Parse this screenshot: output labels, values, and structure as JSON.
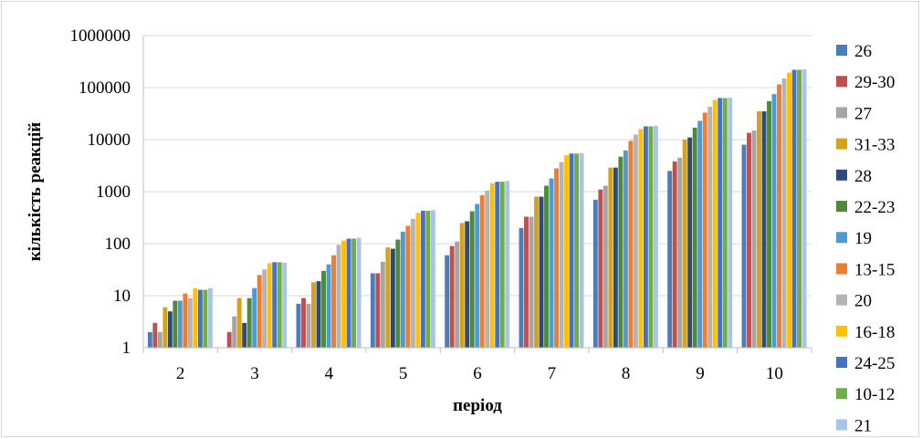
{
  "chart_data": {
    "type": "bar",
    "title": "",
    "xlabel": "період",
    "ylabel": "кількість реакцій",
    "y_scale": "log",
    "ylim": [
      1,
      1000000
    ],
    "y_ticks": [
      "1",
      "10",
      "100",
      "1000",
      "10000",
      "100000",
      "1000000"
    ],
    "grid": true,
    "legend_position": "right",
    "categories": [
      "2",
      "3",
      "4",
      "5",
      "6",
      "7",
      "8",
      "9",
      "10"
    ],
    "series": [
      {
        "name": "26",
        "color": "#4a7ebb",
        "values": [
          2,
          1,
          7,
          27,
          60,
          200,
          700,
          2500,
          8000
        ]
      },
      {
        "name": "29-30",
        "color": "#c0504d",
        "values": [
          3,
          2,
          9,
          27,
          90,
          330,
          1100,
          3800,
          13500
        ]
      },
      {
        "name": "27",
        "color": "#a5a5a5",
        "values": [
          2,
          4,
          7,
          45,
          110,
          330,
          1300,
          4500,
          15000
        ]
      },
      {
        "name": "31-33",
        "color": "#d4a31a",
        "values": [
          6,
          9,
          18,
          85,
          250,
          800,
          2900,
          10000,
          35000
        ]
      },
      {
        "name": "28",
        "color": "#2c4d75",
        "values": [
          5,
          3,
          19,
          80,
          270,
          800,
          2900,
          11000,
          35000
        ]
      },
      {
        "name": "22-23",
        "color": "#4f8a3a",
        "values": [
          8,
          9,
          30,
          120,
          420,
          1300,
          4700,
          17000,
          55000
        ]
      },
      {
        "name": "19",
        "color": "#4e9ad3",
        "values": [
          8,
          14,
          40,
          170,
          580,
          1800,
          6200,
          23000,
          75000
        ]
      },
      {
        "name": "13-15",
        "color": "#ed7d31",
        "values": [
          11,
          25,
          60,
          220,
          850,
          2800,
          9500,
          33000,
          115000
        ]
      },
      {
        "name": "20",
        "color": "#b4b4b4",
        "values": [
          9,
          32,
          95,
          300,
          1050,
          3700,
          12500,
          43000,
          150000
        ]
      },
      {
        "name": "16-18",
        "color": "#ffc000",
        "values": [
          14,
          42,
          115,
          390,
          1450,
          5000,
          16000,
          58000,
          195000
        ]
      },
      {
        "name": "24-25",
        "color": "#4472c4",
        "values": [
          13,
          44,
          125,
          430,
          1550,
          5400,
          18000,
          63000,
          220000
        ]
      },
      {
        "name": "10-12",
        "color": "#70ad47",
        "values": [
          13,
          44,
          125,
          430,
          1550,
          5400,
          18000,
          63000,
          220000
        ]
      },
      {
        "name": "21",
        "color": "#a9c4e6",
        "values": [
          14,
          43,
          130,
          440,
          1600,
          5500,
          18500,
          64000,
          225000
        ]
      }
    ]
  }
}
